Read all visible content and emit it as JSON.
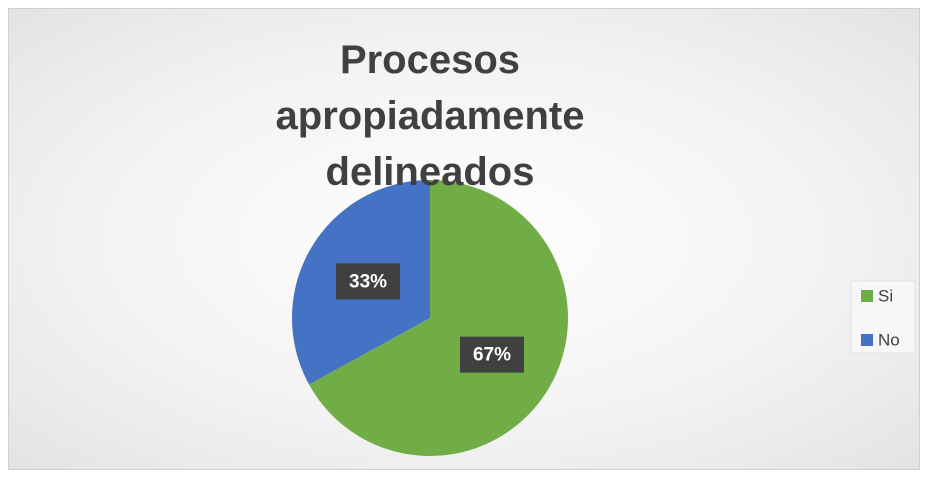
{
  "chart_data": {
    "type": "pie",
    "title": "Procesos apropiadamente delineados",
    "categories": [
      "Si",
      "No"
    ],
    "values": [
      67,
      33
    ],
    "value_labels": [
      "67%",
      "33%"
    ],
    "colors": [
      "#70ad47",
      "#4472c4"
    ],
    "legend": "right"
  }
}
